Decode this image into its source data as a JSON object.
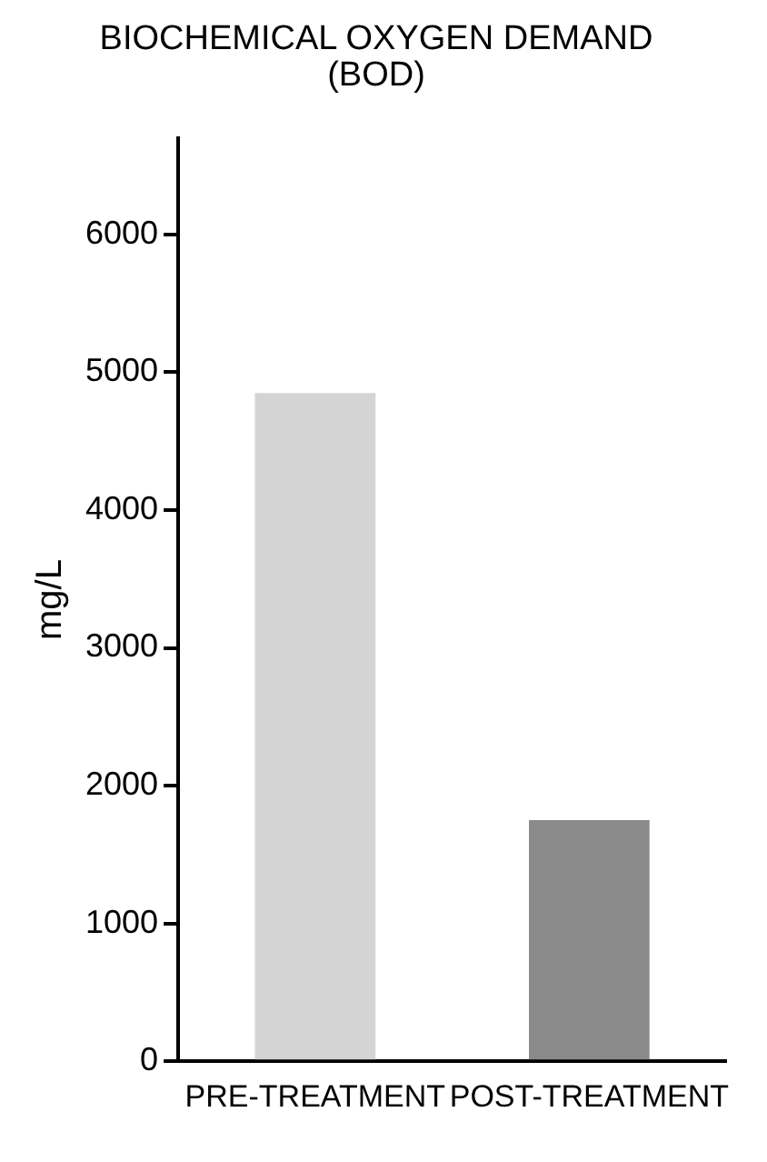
{
  "chart_data": {
    "type": "bar",
    "title": "BIOCHEMICAL OXYGEN DEMAND\n(BOD)",
    "ylabel": "mg/L",
    "categories": [
      "PRE-TREATMENT",
      "POST-TREATMENT"
    ],
    "values": [
      4850,
      1750
    ],
    "colors": [
      "#d4d4d4",
      "#8a8a8a"
    ],
    "ylim": [
      0,
      6700
    ],
    "yticks": [
      0,
      1000,
      2000,
      3000,
      4000,
      5000,
      6000
    ],
    "grid": false,
    "legend": false
  }
}
